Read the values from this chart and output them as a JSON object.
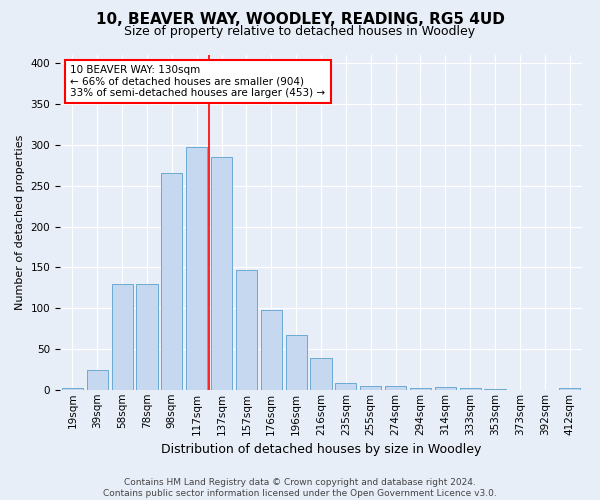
{
  "title": "10, BEAVER WAY, WOODLEY, READING, RG5 4UD",
  "subtitle": "Size of property relative to detached houses in Woodley",
  "xlabel": "Distribution of detached houses by size in Woodley",
  "ylabel": "Number of detached properties",
  "categories": [
    "19sqm",
    "39sqm",
    "58sqm",
    "78sqm",
    "98sqm",
    "117sqm",
    "137sqm",
    "157sqm",
    "176sqm",
    "196sqm",
    "216sqm",
    "235sqm",
    "255sqm",
    "274sqm",
    "294sqm",
    "314sqm",
    "333sqm",
    "353sqm",
    "373sqm",
    "392sqm",
    "412sqm"
  ],
  "values": [
    2,
    25,
    130,
    130,
    265,
    298,
    285,
    147,
    98,
    67,
    39,
    8,
    5,
    5,
    3,
    4,
    3,
    1,
    0,
    0,
    2
  ],
  "bar_color": "#c5d8f0",
  "bar_edge_color": "#6aaad4",
  "annotation_text": "10 BEAVER WAY: 130sqm\n← 66% of detached houses are smaller (904)\n33% of semi-detached houses are larger (453) →",
  "annotation_box_color": "white",
  "annotation_box_edge_color": "red",
  "vline_color": "red",
  "background_color": "#e8eef8",
  "footer_line1": "Contains HM Land Registry data © Crown copyright and database right 2024.",
  "footer_line2": "Contains public sector information licensed under the Open Government Licence v3.0.",
  "ylim": [
    0,
    410
  ],
  "vline_bin": 5,
  "title_fontsize": 11,
  "subtitle_fontsize": 9,
  "xlabel_fontsize": 9,
  "ylabel_fontsize": 8,
  "tick_fontsize": 7.5,
  "annotation_fontsize": 7.5,
  "footer_fontsize": 6.5
}
